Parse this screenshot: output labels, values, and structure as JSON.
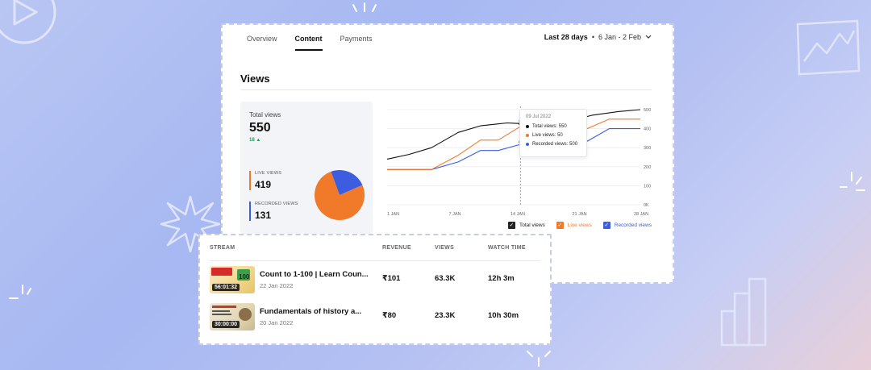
{
  "tabs": [
    "Overview",
    "Content",
    "Payments"
  ],
  "active_tab": "Content",
  "date_range": {
    "label": "Last 28 days",
    "separator": "•",
    "range": "6 Jan - 2 Feb"
  },
  "section_title": "Views",
  "stats": {
    "total_label": "Total views",
    "total_value": "550",
    "total_delta": "18 ▲",
    "live_label": "LIVE VIEWS",
    "live_value": "419",
    "recorded_label": "RECORDED VIEWS",
    "recorded_value": "131"
  },
  "pie_fractions": {
    "live": 0.76,
    "recorded": 0.24
  },
  "colors": {
    "total": "#111111",
    "live": "#f07a2a",
    "recorded": "#3c5de0",
    "delta": "#1aa05a"
  },
  "chart_data": {
    "type": "line",
    "x": [
      "1 JAN",
      "7 JAN",
      "14 JAN",
      "21 JAN",
      "28 JAN"
    ],
    "x_index_max": 28,
    "ylim": [
      0,
      500
    ],
    "yticks": [
      "0K",
      "100",
      "200",
      "300",
      "400",
      "500"
    ],
    "series": [
      {
        "name": "Total views",
        "color": "#111111",
        "points": [
          [
            0,
            240
          ],
          [
            5,
            265
          ],
          [
            10,
            300
          ],
          [
            16,
            380
          ],
          [
            21,
            415
          ],
          [
            25,
            425
          ],
          [
            27,
            430
          ],
          [
            32,
            425
          ],
          [
            38,
            420
          ],
          [
            46,
            470
          ],
          [
            52,
            490
          ],
          [
            57,
            500
          ]
        ]
      },
      {
        "name": "Live views",
        "color": "#f07a2a",
        "points": [
          [
            0,
            185
          ],
          [
            10,
            185
          ],
          [
            16,
            260
          ],
          [
            21,
            340
          ],
          [
            25,
            340
          ],
          [
            32,
            440
          ],
          [
            36,
            440
          ],
          [
            38,
            390
          ],
          [
            44,
            390
          ],
          [
            50,
            450
          ],
          [
            57,
            450
          ]
        ]
      },
      {
        "name": "Recorded views",
        "color": "#3c5de0",
        "points": [
          [
            0,
            185
          ],
          [
            10,
            185
          ],
          [
            16,
            225
          ],
          [
            21,
            285
          ],
          [
            25,
            285
          ],
          [
            32,
            330
          ],
          [
            36,
            330
          ],
          [
            38,
            320
          ],
          [
            44,
            320
          ],
          [
            50,
            400
          ],
          [
            57,
            400
          ]
        ]
      }
    ],
    "x_max": 57,
    "grid": true,
    "hover_x": 30,
    "tooltip": {
      "date": "09 Jul 2022",
      "rows": [
        {
          "label": "Total views: 550",
          "color": "#111111"
        },
        {
          "label": "Live views: 50",
          "color": "#f07a2a"
        },
        {
          "label": "Recorded views: 500",
          "color": "#3c5de0"
        }
      ]
    },
    "legend": [
      "Total views",
      "Live views",
      "Recorded views"
    ],
    "legend_position": "bottom-right"
  },
  "table": {
    "headers": {
      "stream": "STREAM",
      "revenue": "REVENUE",
      "views": "VIEWS",
      "watch_time": "WATCH TIME"
    },
    "rows": [
      {
        "title": "Count to 1-100 | Learn Coun...",
        "date": "22 Jan 2022",
        "duration": "56:01:32",
        "revenue": "₹101",
        "views": "63.3K",
        "watch_time": "12h 3m"
      },
      {
        "title": "Fundamentals of history a...",
        "date": "20 Jan 2022",
        "duration": "30:00:00",
        "revenue": "₹80",
        "views": "23.3K",
        "watch_time": "10h 30m"
      }
    ]
  }
}
